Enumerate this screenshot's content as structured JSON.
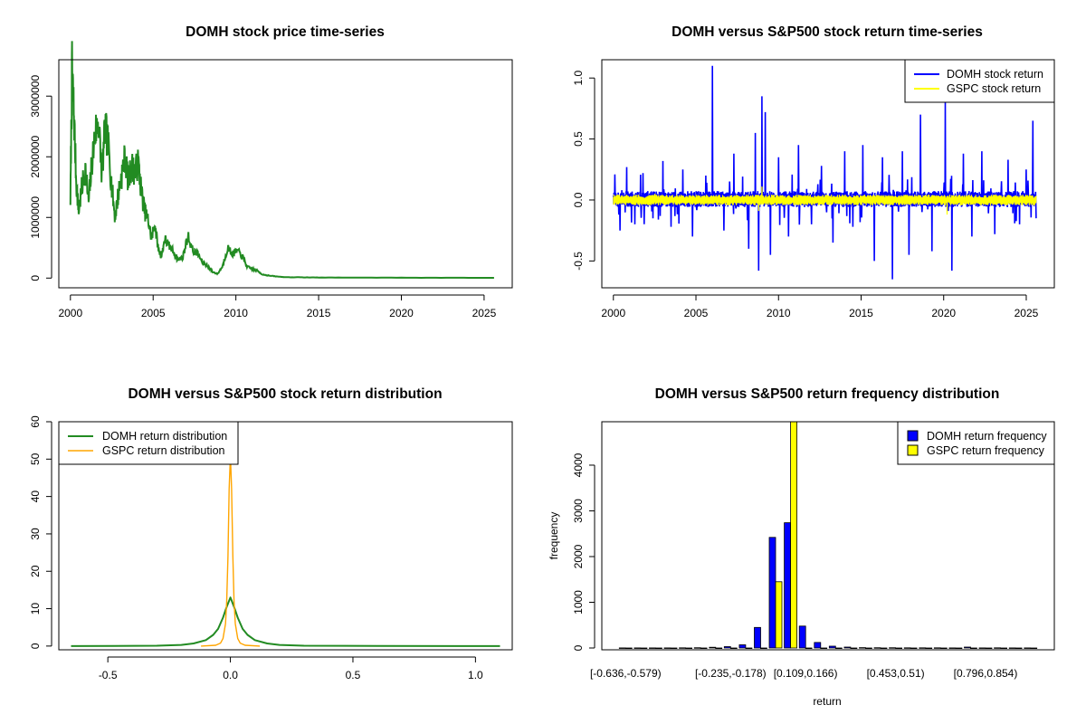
{
  "colors": {
    "price": "#228B22",
    "domh": "#0000FF",
    "gspc": "#FFFF00",
    "gspc_density": "#FFA500",
    "domh_density": "#228B22"
  },
  "chart_data": [
    {
      "type": "line",
      "title": "DOMH stock price time-series",
      "xlabel": "",
      "ylabel": "",
      "xlim": [
        1999.3,
        2026.7
      ],
      "ylim": [
        -160000,
        3600000
      ],
      "x_ticks": [
        2000,
        2005,
        2010,
        2015,
        2020,
        2025
      ],
      "x_tick_labels": [
        "2000",
        "2005",
        "2010",
        "2015",
        "2020",
        "2025"
      ],
      "y_ticks": [
        0,
        1000000,
        2000000,
        3000000
      ],
      "y_tick_labels": [
        "0",
        "1000000",
        "2000000",
        "3000000"
      ],
      "series": [
        {
          "name": "DOMH price",
          "x": [
            2000.0,
            2000.1,
            2000.2,
            2000.35,
            2000.5,
            2000.7,
            2000.9,
            2001.1,
            2001.3,
            2001.5,
            2001.7,
            2001.9,
            2002.1,
            2002.3,
            2002.5,
            2002.7,
            2002.9,
            2003.1,
            2003.3,
            2003.5,
            2003.7,
            2003.9,
            2004.1,
            2004.3,
            2004.5,
            2004.7,
            2004.9,
            2005.1,
            2005.3,
            2005.5,
            2005.7,
            2005.9,
            2006.2,
            2006.5,
            2006.8,
            2007.1,
            2007.4,
            2007.7,
            2008.0,
            2008.3,
            2008.6,
            2008.9,
            2009.2,
            2009.5,
            2009.8,
            2010.1,
            2010.4,
            2010.7,
            2011.0,
            2011.3,
            2011.6,
            2012.0,
            2012.5,
            2013.0,
            2014.0,
            2015.0,
            2017.0,
            2020.0,
            2023.0,
            2025.6
          ],
          "values": [
            1300000,
            3450000,
            2800000,
            1600000,
            1100000,
            1500000,
            1800000,
            1250000,
            1900000,
            2400000,
            2600000,
            1700000,
            2500000,
            2150000,
            1500000,
            1000000,
            1400000,
            1700000,
            2000000,
            1600000,
            1850000,
            1750000,
            1900000,
            1400000,
            1100000,
            950000,
            650000,
            900000,
            500000,
            350000,
            650000,
            550000,
            450000,
            300000,
            350000,
            700000,
            450000,
            400000,
            250000,
            200000,
            100000,
            70000,
            200000,
            500000,
            400000,
            450000,
            350000,
            180000,
            150000,
            120000,
            60000,
            40000,
            25000,
            15000,
            12000,
            10000,
            8000,
            6000,
            5000,
            4000
          ]
        }
      ]
    },
    {
      "type": "line",
      "title": "DOMH versus S&P500 stock return time-series",
      "xlabel": "",
      "ylabel": "",
      "xlim": [
        1999.3,
        2026.7
      ],
      "ylim": [
        -0.72,
        1.15
      ],
      "x_ticks": [
        2000,
        2005,
        2010,
        2015,
        2020,
        2025
      ],
      "x_tick_labels": [
        "2000",
        "2005",
        "2010",
        "2015",
        "2020",
        "2025"
      ],
      "y_ticks": [
        -0.5,
        0.0,
        0.5,
        1.0
      ],
      "y_tick_labels": [
        "-0.5",
        "0.0",
        "0.5",
        "1.0"
      ],
      "legend": {
        "position": "top-right",
        "entries": [
          "DOMH stock return",
          "GSPC stock return"
        ]
      },
      "series": [
        {
          "name": "DOMH stock return",
          "band": [
            -0.04,
            0.05
          ],
          "spikes_x": [
            2000.1,
            2000.4,
            2000.8,
            2001.3,
            2001.8,
            2002.4,
            2003.0,
            2003.5,
            2004.2,
            2004.8,
            2005.6,
            2006.0,
            2006.7,
            2007.3,
            2008.2,
            2008.6,
            2008.8,
            2009.0,
            2009.2,
            2009.5,
            2010.0,
            2010.6,
            2011.2,
            2012.0,
            2012.6,
            2013.3,
            2014.0,
            2014.5,
            2015.1,
            2015.8,
            2016.3,
            2016.9,
            2017.5,
            2017.9,
            2018.6,
            2019.3,
            2020.1,
            2020.5,
            2021.2,
            2021.7,
            2022.3,
            2023.1,
            2023.9,
            2024.6,
            2025.0,
            2025.4,
            2025.6
          ],
          "spikes_y": [
            0.21,
            -0.25,
            0.27,
            -0.2,
            0.22,
            -0.15,
            0.32,
            -0.22,
            0.25,
            -0.3,
            0.2,
            1.1,
            -0.25,
            0.38,
            -0.4,
            0.55,
            -0.58,
            0.85,
            0.72,
            -0.45,
            0.35,
            -0.3,
            0.45,
            -0.2,
            0.28,
            -0.35,
            0.4,
            -0.22,
            0.45,
            -0.5,
            0.35,
            -0.65,
            0.4,
            -0.45,
            0.7,
            -0.42,
            0.82,
            -0.58,
            0.38,
            -0.3,
            0.4,
            -0.28,
            0.33,
            -0.2,
            0.25,
            0.65,
            -0.15
          ]
        },
        {
          "name": "GSPC stock return",
          "band": [
            -0.03,
            0.03
          ],
          "spikes_x": [
            2002.5,
            2008.8,
            2009.0,
            2020.2
          ],
          "spikes_y": [
            0.05,
            -0.09,
            0.11,
            -0.12
          ]
        }
      ]
    },
    {
      "type": "line",
      "title": "DOMH versus S&P500 stock return distribution",
      "xlabel": "",
      "ylabel": "",
      "xlim": [
        -0.7,
        1.15
      ],
      "ylim": [
        -1,
        60
      ],
      "x_ticks": [
        -0.5,
        0.0,
        0.5,
        1.0
      ],
      "x_tick_labels": [
        "-0.5",
        "0.0",
        "0.5",
        "1.0"
      ],
      "y_ticks": [
        0,
        10,
        20,
        30,
        40,
        50,
        60
      ],
      "y_tick_labels": [
        "0",
        "10",
        "20",
        "30",
        "40",
        "50",
        "60"
      ],
      "legend": {
        "position": "top-left",
        "entries": [
          "DOMH return distribution",
          "GSPC return distribution"
        ]
      },
      "series": [
        {
          "name": "DOMH return distribution",
          "x": [
            -0.65,
            -0.3,
            -0.2,
            -0.15,
            -0.1,
            -0.07,
            -0.05,
            -0.03,
            -0.015,
            0.0,
            0.015,
            0.03,
            0.05,
            0.07,
            0.1,
            0.15,
            0.2,
            0.3,
            0.6,
            1.1
          ],
          "values": [
            0,
            0.1,
            0.3,
            0.7,
            1.6,
            3.0,
            4.6,
            7.6,
            10.5,
            13.0,
            10.5,
            7.6,
            4.6,
            3.0,
            1.6,
            0.7,
            0.3,
            0.1,
            0.05,
            0
          ]
        },
        {
          "name": "GSPC return distribution",
          "x": [
            -0.12,
            -0.06,
            -0.04,
            -0.03,
            -0.02,
            -0.015,
            -0.01,
            -0.005,
            0.0,
            0.005,
            0.01,
            0.015,
            0.02,
            0.03,
            0.04,
            0.06,
            0.12
          ],
          "values": [
            0,
            0.2,
            0.8,
            2.0,
            6.0,
            12.0,
            24.0,
            42.0,
            51.0,
            42.0,
            24.0,
            12.0,
            6.0,
            2.0,
            0.8,
            0.2,
            0
          ]
        }
      ]
    },
    {
      "type": "bar",
      "title": "DOMH versus S&P500 return frequency distribution",
      "xlabel": "return",
      "ylabel": "frequency",
      "ylim": [
        0,
        4950
      ],
      "y_ticks": [
        0,
        1000,
        2000,
        3000,
        4000
      ],
      "y_tick_labels": [
        "0",
        "1000",
        "2000",
        "3000",
        "4000"
      ],
      "x_tick_labels": [
        "[-0.636,-0.579)",
        "[-0.235,-0.178)",
        "[0.109,0.166)",
        "[0.453,0.51)",
        "[0.796,0.854)"
      ],
      "x_tick_bins": [
        0,
        7,
        12,
        18,
        24
      ],
      "legend": {
        "position": "top-right",
        "entries": [
          "DOMH return frequency",
          "GSPC return frequency"
        ]
      },
      "series": [
        {
          "name": "DOMH return frequency",
          "values": [
            2,
            1,
            2,
            2,
            3,
            5,
            15,
            30,
            70,
            450,
            2420,
            2740,
            480,
            120,
            40,
            20,
            8,
            6,
            5,
            4,
            3,
            3,
            2,
            20,
            2,
            3,
            2,
            1
          ]
        },
        {
          "name": "GSPC return frequency",
          "values": [
            0,
            0,
            0,
            0,
            0,
            0,
            0,
            0,
            0,
            0,
            1450,
            4950,
            0,
            0,
            0,
            0,
            0,
            0,
            0,
            0,
            0,
            0,
            0,
            0,
            0,
            0,
            0,
            0
          ]
        }
      ]
    }
  ]
}
